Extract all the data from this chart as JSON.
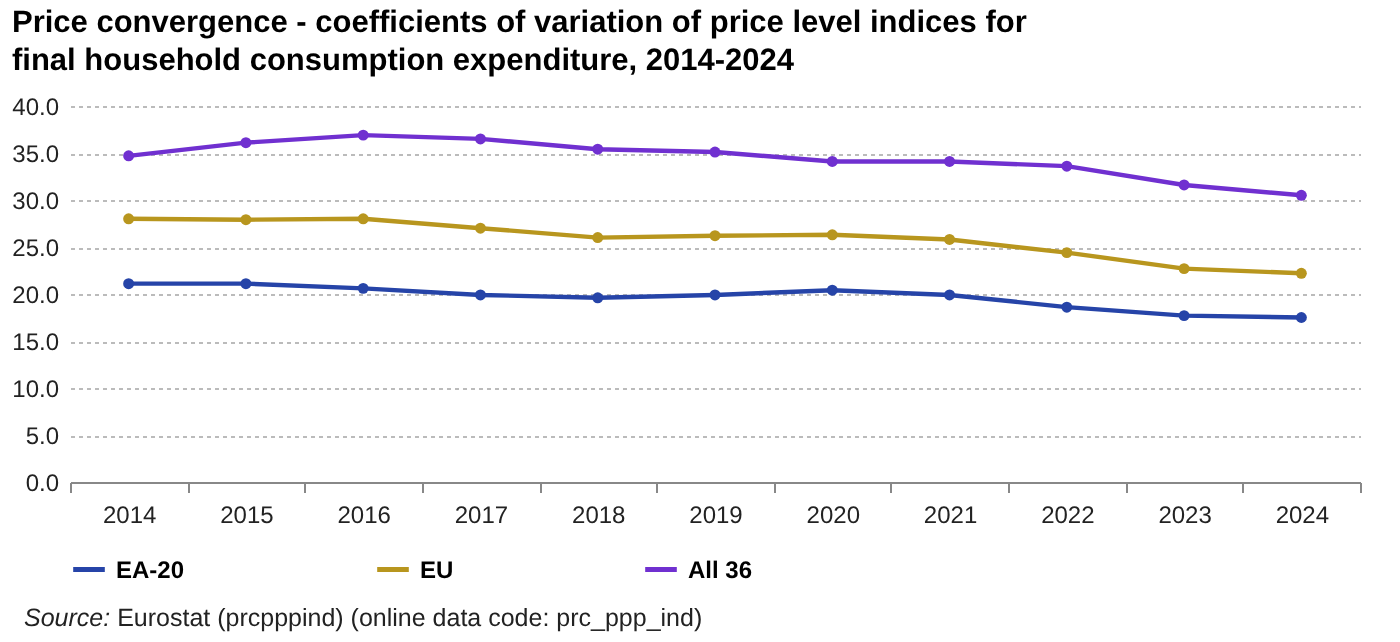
{
  "chart_data": {
    "type": "line",
    "title": "Price convergence - coefficients of variation of price level indices for final household consumption expenditure, 2014-2024",
    "categories": [
      "2014",
      "2015",
      "2016",
      "2017",
      "2018",
      "2019",
      "2020",
      "2021",
      "2022",
      "2023",
      "2024"
    ],
    "series": [
      {
        "name": "EA-20",
        "color": "#2644a8",
        "values": [
          21.1,
          21.1,
          20.6,
          19.9,
          19.6,
          19.9,
          20.4,
          19.9,
          18.6,
          17.7,
          17.5
        ]
      },
      {
        "name": "EU",
        "color": "#b8961e",
        "values": [
          28.0,
          27.9,
          28.0,
          27.0,
          26.0,
          26.2,
          26.3,
          25.8,
          24.4,
          22.7,
          22.2
        ]
      },
      {
        "name": "All 36",
        "color": "#7030d0",
        "values": [
          34.7,
          36.1,
          36.9,
          36.5,
          35.4,
          35.1,
          34.1,
          34.1,
          33.6,
          31.6,
          30.5
        ]
      }
    ],
    "ylim": [
      0,
      40
    ],
    "yticks": [
      {
        "value": 0,
        "label": "0.0"
      },
      {
        "value": 5,
        "label": "5.0"
      },
      {
        "value": 10,
        "label": "10.0"
      },
      {
        "value": 15,
        "label": "15.0"
      },
      {
        "value": 20,
        "label": "20.0"
      },
      {
        "value": 25,
        "label": "25.0"
      },
      {
        "value": 30,
        "label": "30.0"
      },
      {
        "value": 35,
        "label": "35.0"
      },
      {
        "value": 40,
        "label": "40.0"
      }
    ],
    "grid": "y",
    "legend": "bottom",
    "marker": "circle",
    "line_style": "solid",
    "annotations": [
      "Source: Eurostat (prcpppind) (online data code: prc_ppp_ind)"
    ]
  }
}
